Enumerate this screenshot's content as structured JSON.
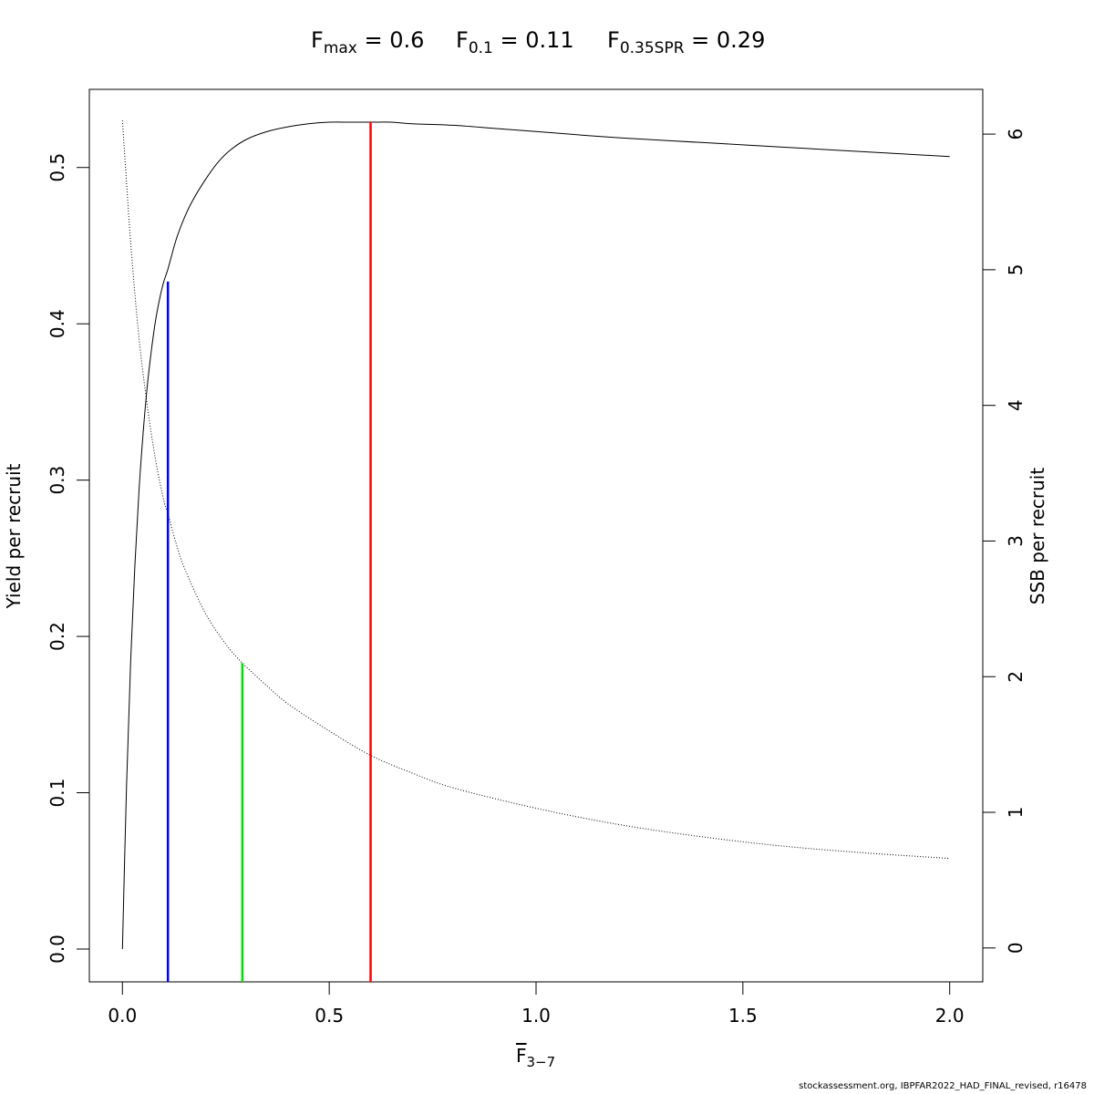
{
  "title": {
    "fmax": {
      "symbol": "F",
      "sub": "max",
      "rest": " = 0.6"
    },
    "f01": {
      "symbol": "F",
      "sub": "0.1",
      "rest": " = 0.11"
    },
    "f035": {
      "symbol": "F",
      "sub": "0.35SPR",
      "rest": " = 0.29"
    }
  },
  "xlabel": {
    "symbol": "F",
    "sub": "3−7"
  },
  "footer": "stockassessment.org, IBPFAR2022_HAD_FINAL_revised, r16478",
  "chart_data": {
    "type": "line",
    "xlim": [
      -0.08,
      2.08
    ],
    "ylim_left": [
      -0.021,
      0.55
    ],
    "ylim_right": [
      -0.25,
      6.33
    ],
    "ylabel_left": "Yield per recruit",
    "ylabel_right": "SSB per recruit",
    "x_ticks": [
      "0.0",
      "0.5",
      "1.0",
      "1.5",
      "2.0"
    ],
    "x_tick_values": [
      0,
      0.5,
      1.0,
      1.5,
      2.0
    ],
    "y_left_ticks": [
      "0.0",
      "0.1",
      "0.2",
      "0.3",
      "0.4",
      "0.5"
    ],
    "y_left_tick_values": [
      0,
      0.1,
      0.2,
      0.3,
      0.4,
      0.5
    ],
    "y_right_ticks": [
      "0",
      "1",
      "2",
      "3",
      "4",
      "5",
      "6"
    ],
    "y_right_tick_values": [
      0,
      1,
      2,
      3,
      4,
      5,
      6
    ],
    "series": [
      {
        "axis": "left",
        "style": "solid",
        "x": [
          0,
          0.01,
          0.02,
          0.03,
          0.04,
          0.05,
          0.06,
          0.07,
          0.08,
          0.09,
          0.1,
          0.11,
          0.13,
          0.15,
          0.17,
          0.2,
          0.23,
          0.26,
          0.3,
          0.35,
          0.4,
          0.45,
          0.5,
          0.55,
          0.6,
          0.65,
          0.7,
          0.8,
          0.9,
          1.0,
          1.2,
          1.4,
          1.6,
          1.8,
          2.0
        ],
        "y": [
          0,
          0.105,
          0.185,
          0.245,
          0.293,
          0.33,
          0.36,
          0.383,
          0.402,
          0.416,
          0.427,
          0.435,
          0.454,
          0.468,
          0.479,
          0.492,
          0.503,
          0.511,
          0.518,
          0.523,
          0.526,
          0.528,
          0.529,
          0.529,
          0.529,
          0.529,
          0.528,
          0.527,
          0.525,
          0.523,
          0.519,
          0.516,
          0.513,
          0.51,
          0.507
        ]
      },
      {
        "axis": "right",
        "style": "dotted",
        "x": [
          0,
          0.02,
          0.04,
          0.06,
          0.08,
          0.1,
          0.11,
          0.13,
          0.15,
          0.2,
          0.25,
          0.29,
          0.35,
          0.4,
          0.5,
          0.6,
          0.7,
          0.8,
          1.0,
          1.2,
          1.4,
          1.6,
          1.8,
          2.0
        ],
        "y": [
          6.1,
          5.2,
          4.5,
          4.0,
          3.6,
          3.3,
          3.2,
          2.98,
          2.8,
          2.47,
          2.24,
          2.1,
          1.93,
          1.8,
          1.6,
          1.42,
          1.29,
          1.18,
          1.03,
          0.91,
          0.82,
          0.75,
          0.7,
          0.66
        ]
      }
    ],
    "reference_lines": [
      {
        "name": "Fmax",
        "x": 0.6,
        "y": 0.529,
        "color": "#ff0000"
      },
      {
        "name": "F0.1",
        "x": 0.11,
        "y": 0.427,
        "color": "#0000ff"
      },
      {
        "name": "F0.35SPR",
        "x": 0.29,
        "y": 0.183,
        "color": "#00dd00"
      }
    ]
  }
}
